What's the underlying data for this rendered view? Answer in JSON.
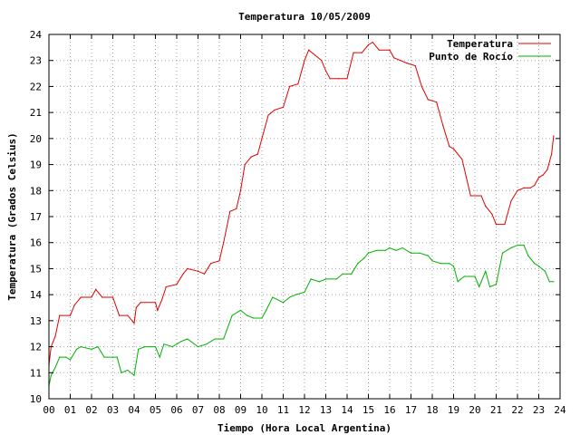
{
  "chart_data": {
    "type": "line",
    "title": "Temperatura 10/05/2009",
    "xlabel": "Tiempo (Hora Local Argentina)",
    "ylabel": "Temperatura (Grados Celsius)",
    "xlim": [
      0,
      24
    ],
    "ylim": [
      10,
      24
    ],
    "grid": true,
    "legend_position": "top-right",
    "x_ticks": [
      "00",
      "01",
      "02",
      "03",
      "04",
      "05",
      "06",
      "07",
      "08",
      "09",
      "10",
      "11",
      "12",
      "13",
      "14",
      "15",
      "16",
      "17",
      "18",
      "19",
      "20",
      "21",
      "22",
      "23",
      "24"
    ],
    "y_ticks": [
      "10",
      "11",
      "12",
      "13",
      "14",
      "15",
      "16",
      "17",
      "18",
      "19",
      "20",
      "21",
      "22",
      "23",
      "24"
    ],
    "series": [
      {
        "name": "Temperatura",
        "color": "#e00000",
        "points": [
          [
            0.0,
            11.3
          ],
          [
            0.1,
            12.0
          ],
          [
            0.3,
            12.4
          ],
          [
            0.5,
            13.2
          ],
          [
            1.0,
            13.2
          ],
          [
            1.2,
            13.6
          ],
          [
            1.5,
            13.9
          ],
          [
            2.0,
            13.9
          ],
          [
            2.2,
            14.2
          ],
          [
            2.5,
            13.9
          ],
          [
            3.0,
            13.9
          ],
          [
            3.3,
            13.2
          ],
          [
            3.7,
            13.2
          ],
          [
            4.0,
            12.9
          ],
          [
            4.1,
            13.5
          ],
          [
            4.3,
            13.7
          ],
          [
            5.0,
            13.7
          ],
          [
            5.1,
            13.4
          ],
          [
            5.3,
            13.8
          ],
          [
            5.5,
            14.3
          ],
          [
            6.0,
            14.4
          ],
          [
            6.3,
            14.8
          ],
          [
            6.5,
            15.0
          ],
          [
            7.0,
            14.9
          ],
          [
            7.3,
            14.8
          ],
          [
            7.6,
            15.2
          ],
          [
            8.0,
            15.3
          ],
          [
            8.2,
            16.0
          ],
          [
            8.5,
            17.2
          ],
          [
            8.8,
            17.3
          ],
          [
            9.0,
            18.0
          ],
          [
            9.2,
            19.0
          ],
          [
            9.5,
            19.3
          ],
          [
            9.8,
            19.4
          ],
          [
            10.0,
            20.0
          ],
          [
            10.3,
            20.9
          ],
          [
            10.6,
            21.1
          ],
          [
            11.0,
            21.2
          ],
          [
            11.3,
            22.0
          ],
          [
            11.7,
            22.1
          ],
          [
            12.0,
            23.0
          ],
          [
            12.2,
            23.4
          ],
          [
            12.5,
            23.2
          ],
          [
            12.8,
            23.0
          ],
          [
            13.0,
            22.6
          ],
          [
            13.2,
            22.3
          ],
          [
            13.6,
            22.3
          ],
          [
            14.0,
            22.3
          ],
          [
            14.3,
            23.3
          ],
          [
            14.7,
            23.3
          ],
          [
            15.0,
            23.6
          ],
          [
            15.2,
            23.7
          ],
          [
            15.5,
            23.4
          ],
          [
            16.0,
            23.4
          ],
          [
            16.2,
            23.1
          ],
          [
            16.5,
            23.0
          ],
          [
            16.8,
            22.9
          ],
          [
            17.2,
            22.8
          ],
          [
            17.5,
            22.0
          ],
          [
            17.8,
            21.5
          ],
          [
            18.2,
            21.4
          ],
          [
            18.5,
            20.5
          ],
          [
            18.8,
            19.7
          ],
          [
            19.0,
            19.6
          ],
          [
            19.4,
            19.2
          ],
          [
            19.6,
            18.5
          ],
          [
            19.8,
            17.8
          ],
          [
            20.3,
            17.8
          ],
          [
            20.5,
            17.4
          ],
          [
            20.8,
            17.1
          ],
          [
            21.0,
            16.7
          ],
          [
            21.4,
            16.7
          ],
          [
            21.7,
            17.6
          ],
          [
            22.0,
            18.0
          ],
          [
            22.3,
            18.1
          ],
          [
            22.6,
            18.1
          ],
          [
            22.8,
            18.2
          ],
          [
            23.0,
            18.5
          ],
          [
            23.2,
            18.6
          ],
          [
            23.4,
            18.8
          ],
          [
            23.6,
            19.4
          ],
          [
            23.7,
            20.1
          ]
        ]
      },
      {
        "name": "Punto de Rocío",
        "color": "#00b000",
        "points": [
          [
            0.0,
            10.5
          ],
          [
            0.1,
            10.9
          ],
          [
            0.3,
            11.2
          ],
          [
            0.5,
            11.6
          ],
          [
            0.8,
            11.6
          ],
          [
            1.0,
            11.5
          ],
          [
            1.3,
            11.9
          ],
          [
            1.5,
            12.0
          ],
          [
            2.0,
            11.9
          ],
          [
            2.3,
            12.0
          ],
          [
            2.6,
            11.6
          ],
          [
            3.0,
            11.6
          ],
          [
            3.2,
            11.6
          ],
          [
            3.4,
            11.0
          ],
          [
            3.7,
            11.1
          ],
          [
            4.0,
            10.9
          ],
          [
            4.2,
            11.9
          ],
          [
            4.5,
            12.0
          ],
          [
            5.0,
            12.0
          ],
          [
            5.2,
            11.6
          ],
          [
            5.4,
            12.1
          ],
          [
            5.8,
            12.0
          ],
          [
            6.2,
            12.2
          ],
          [
            6.5,
            12.3
          ],
          [
            7.0,
            12.0
          ],
          [
            7.4,
            12.1
          ],
          [
            7.8,
            12.3
          ],
          [
            8.2,
            12.3
          ],
          [
            8.6,
            13.2
          ],
          [
            9.0,
            13.4
          ],
          [
            9.3,
            13.2
          ],
          [
            9.6,
            13.1
          ],
          [
            10.0,
            13.1
          ],
          [
            10.2,
            13.4
          ],
          [
            10.5,
            13.9
          ],
          [
            11.0,
            13.7
          ],
          [
            11.3,
            13.9
          ],
          [
            11.6,
            14.0
          ],
          [
            12.0,
            14.1
          ],
          [
            12.3,
            14.6
          ],
          [
            12.7,
            14.5
          ],
          [
            13.0,
            14.6
          ],
          [
            13.5,
            14.6
          ],
          [
            13.8,
            14.8
          ],
          [
            14.2,
            14.8
          ],
          [
            14.5,
            15.2
          ],
          [
            14.8,
            15.4
          ],
          [
            15.0,
            15.6
          ],
          [
            15.4,
            15.7
          ],
          [
            15.8,
            15.7
          ],
          [
            16.0,
            15.8
          ],
          [
            16.3,
            15.7
          ],
          [
            16.6,
            15.8
          ],
          [
            17.0,
            15.6
          ],
          [
            17.4,
            15.6
          ],
          [
            17.8,
            15.5
          ],
          [
            18.0,
            15.3
          ],
          [
            18.4,
            15.2
          ],
          [
            18.8,
            15.2
          ],
          [
            19.0,
            15.1
          ],
          [
            19.2,
            14.5
          ],
          [
            19.5,
            14.7
          ],
          [
            20.0,
            14.7
          ],
          [
            20.2,
            14.3
          ],
          [
            20.5,
            14.9
          ],
          [
            20.7,
            14.3
          ],
          [
            21.0,
            14.4
          ],
          [
            21.3,
            15.6
          ],
          [
            21.7,
            15.8
          ],
          [
            22.0,
            15.9
          ],
          [
            22.3,
            15.9
          ],
          [
            22.5,
            15.5
          ],
          [
            22.8,
            15.2
          ],
          [
            23.0,
            15.1
          ],
          [
            23.3,
            14.9
          ],
          [
            23.5,
            14.5
          ],
          [
            23.7,
            14.5
          ]
        ]
      }
    ]
  }
}
